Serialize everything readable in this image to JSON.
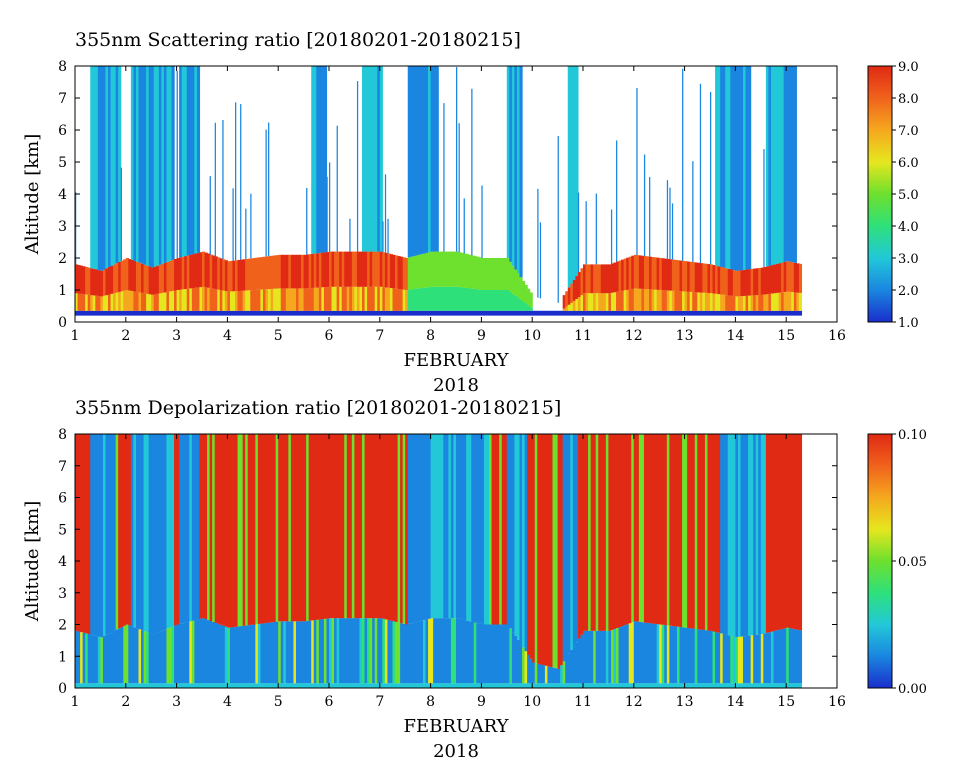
{
  "chart_data": [
    {
      "type": "heatmap",
      "title": "355nm Scattering ratio [20180201-20180215]",
      "xlabel": "FEBRUARY",
      "xlabel2": "2018",
      "ylabel": "Altitude [km]",
      "x_ticks": [
        "1",
        "2",
        "3",
        "4",
        "5",
        "6",
        "7",
        "8",
        "9",
        "10",
        "11",
        "12",
        "13",
        "14",
        "15",
        "16"
      ],
      "y_ticks": [
        "0",
        "1",
        "2",
        "3",
        "4",
        "5",
        "6",
        "7",
        "8"
      ],
      "xlim": [
        1,
        16
      ],
      "ylim": [
        0,
        8
      ],
      "data_xlim": [
        1,
        15.3
      ],
      "colorbar": {
        "ticks": [
          "1.0",
          "2.0",
          "3.0",
          "4.0",
          "5.0",
          "6.0",
          "7.0",
          "8.0",
          "9.0"
        ],
        "range": [
          1.0,
          9.0
        ],
        "colors": [
          "#1a2ecc",
          "#1a86e0",
          "#22c8d8",
          "#2ee07a",
          "#6ee02e",
          "#e6e61e",
          "#f5a81e",
          "#f0621c",
          "#e02a14"
        ]
      },
      "pbl_top_km_by_day": [
        [
          1.0,
          1.8
        ],
        [
          1.5,
          1.6
        ],
        [
          2.0,
          2.0
        ],
        [
          2.5,
          1.7
        ],
        [
          3.0,
          2.0
        ],
        [
          3.5,
          2.2
        ],
        [
          4.0,
          1.9
        ],
        [
          4.5,
          2.0
        ],
        [
          5.0,
          2.1
        ],
        [
          5.5,
          2.1
        ],
        [
          6.0,
          2.2
        ],
        [
          6.5,
          2.2
        ],
        [
          7.0,
          2.2
        ],
        [
          7.5,
          2.0
        ],
        [
          8.0,
          2.2
        ],
        [
          8.5,
          2.2
        ],
        [
          9.0,
          2.0
        ],
        [
          9.5,
          2.0
        ],
        [
          10.0,
          0.8
        ],
        [
          10.5,
          0.6
        ],
        [
          11.0,
          1.8
        ],
        [
          11.5,
          1.8
        ],
        [
          12.0,
          2.1
        ],
        [
          12.5,
          2.0
        ],
        [
          13.0,
          1.9
        ],
        [
          13.5,
          1.8
        ],
        [
          14.0,
          1.6
        ],
        [
          14.5,
          1.7
        ],
        [
          15.0,
          1.9
        ],
        [
          15.3,
          1.8
        ]
      ]
    },
    {
      "type": "heatmap",
      "title": "355nm Depolarization ratio [20180201-20180215]",
      "xlabel": "FEBRUARY",
      "xlabel2": "2018",
      "ylabel": "Altitude [km]",
      "x_ticks": [
        "1",
        "2",
        "3",
        "4",
        "5",
        "6",
        "7",
        "8",
        "9",
        "10",
        "11",
        "12",
        "13",
        "14",
        "15",
        "16"
      ],
      "y_ticks": [
        "0",
        "1",
        "2",
        "3",
        "4",
        "5",
        "6",
        "7",
        "8"
      ],
      "xlim": [
        1,
        16
      ],
      "ylim": [
        0,
        8
      ],
      "data_xlim": [
        1,
        15.3
      ],
      "colorbar": {
        "ticks": [
          "0.00",
          "0.05",
          "0.10"
        ],
        "tick_values": [
          0.0,
          0.05,
          0.1
        ],
        "range": [
          0.0,
          0.1
        ],
        "colors": [
          "#1a2ecc",
          "#1a86e0",
          "#22c8d8",
          "#2ee07a",
          "#6ee02e",
          "#e6e61e",
          "#f5a81e",
          "#f0621c",
          "#e02a14"
        ]
      }
    }
  ]
}
